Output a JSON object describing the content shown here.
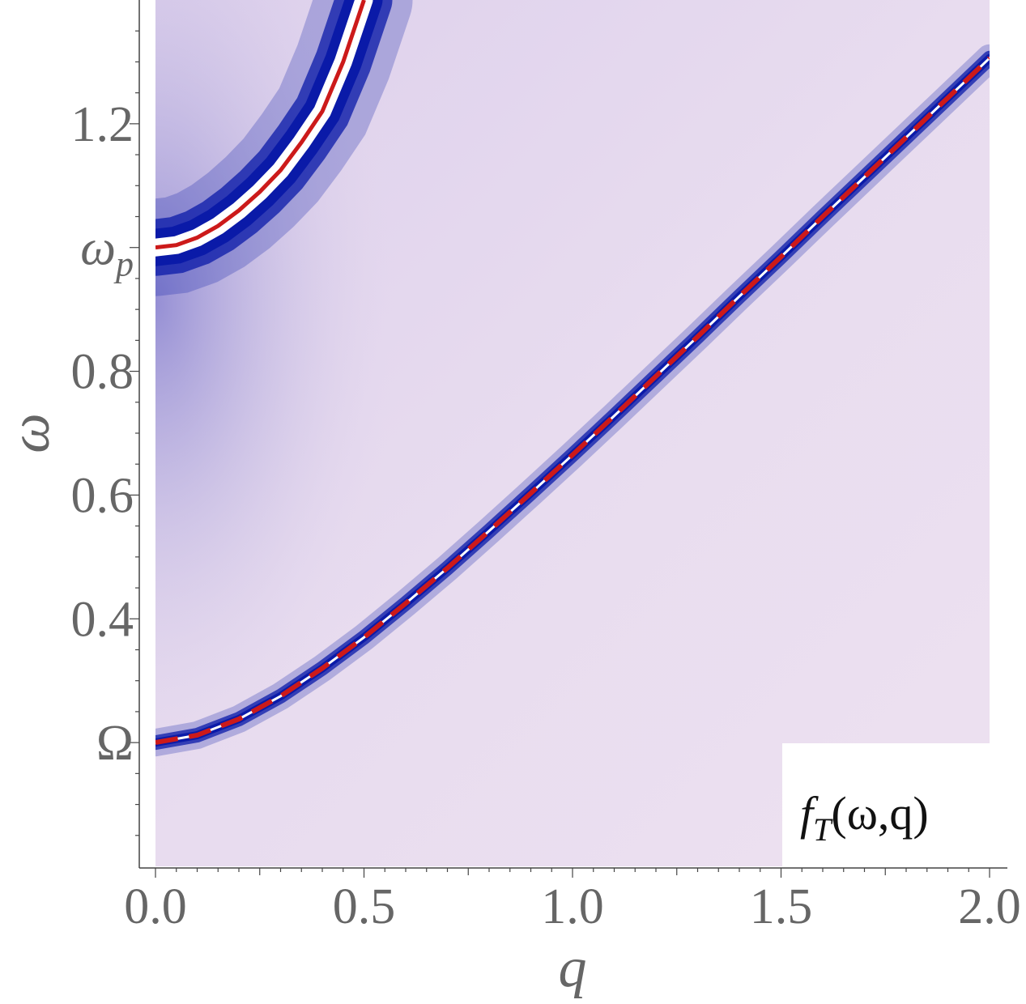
{
  "chart_data": {
    "type": "heatmap",
    "title": "",
    "xlabel": "q",
    "ylabel": "ω",
    "xlim": [
      0,
      2
    ],
    "ylim": [
      0,
      1.4
    ],
    "grid": false,
    "x_ticks": [
      {
        "value": 0.0,
        "label": "0.0"
      },
      {
        "value": 0.5,
        "label": "0.5"
      },
      {
        "value": 1.0,
        "label": "1.0"
      },
      {
        "value": 1.5,
        "label": "1.5"
      },
      {
        "value": 2.0,
        "label": "2.0"
      }
    ],
    "y_ticks": [
      {
        "value": 0.2,
        "label": "Ω"
      },
      {
        "value": 0.4,
        "label": "0.4"
      },
      {
        "value": 0.6,
        "label": "0.6"
      },
      {
        "value": 0.8,
        "label": "0.8"
      },
      {
        "value": 1.0,
        "label": "ω",
        "subscript": "p"
      },
      {
        "value": 1.2,
        "label": "1.2"
      }
    ],
    "heatmap": {
      "quantity_label": "f",
      "quantity_subscript": "T",
      "quantity_args": "(ω,q)",
      "label_placement": "bottom-right",
      "background_color": "#ece0f0",
      "peak_color": "#0a1aa8",
      "ridge_color": "#ffffff"
    },
    "series": [
      {
        "style": "solid",
        "color": "#cc1a1a",
        "x": [
          0.0,
          0.05,
          0.1,
          0.15,
          0.2,
          0.25,
          0.3,
          0.35,
          0.4,
          0.45,
          0.5
        ],
        "y": [
          1.0,
          1.004,
          1.016,
          1.035,
          1.06,
          1.09,
          1.125,
          1.17,
          1.22,
          1.3,
          1.4
        ]
      },
      {
        "style": "dashed",
        "color": "#cc1a1a",
        "x": [
          0.0,
          0.1,
          0.2,
          0.3,
          0.4,
          0.5,
          0.6,
          0.7,
          0.8,
          0.9,
          1.0,
          1.1,
          1.2,
          1.3,
          1.4,
          1.5,
          1.6,
          1.7,
          1.8,
          1.9,
          2.0
        ],
        "y": [
          0.2,
          0.212,
          0.238,
          0.275,
          0.32,
          0.37,
          0.425,
          0.482,
          0.542,
          0.603,
          0.665,
          0.728,
          0.792,
          0.856,
          0.921,
          0.985,
          1.05,
          1.114,
          1.178,
          1.242,
          1.306
        ]
      }
    ]
  }
}
